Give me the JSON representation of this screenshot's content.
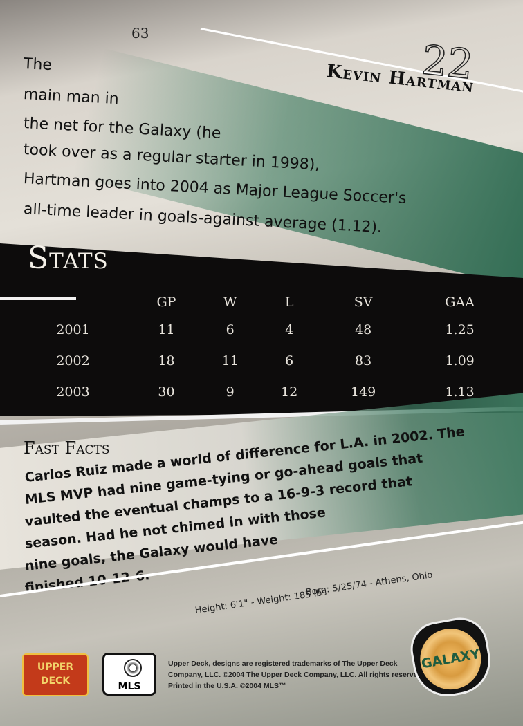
{
  "page_number": "63",
  "player": {
    "number": "22",
    "name": "Kevin Hartman"
  },
  "bio_lines": [
    "The",
    "main man in",
    "the net for the Galaxy (he",
    "took over as a regular starter in 1998),",
    "Hartman goes into 2004 as Major League Soccer's",
    "all-time leader in goals-against average (1.12)."
  ],
  "stats": {
    "title": "Stats",
    "headers": [
      "",
      "GP",
      "W",
      "L",
      "SV",
      "GAA"
    ],
    "rows": [
      [
        "2001",
        "11",
        "6",
        "4",
        "48",
        "1.25"
      ],
      [
        "2002",
        "18",
        "11",
        "6",
        "83",
        "1.09"
      ],
      [
        "2003",
        "30",
        "9",
        "12",
        "149",
        "1.13"
      ]
    ]
  },
  "fast_facts": {
    "title": "Fast Facts",
    "lines": [
      "Carlos Ruiz made a world of difference for L.A. in 2002. The",
      "MLS MVP had nine game-tying or go-ahead goals that",
      "vaulted the eventual champs to a 16-9-3 record that",
      "season. Had he not chimed in with those",
      "nine goals, the Galaxy would have",
      "finished 10-12-6."
    ]
  },
  "info": {
    "height_weight": "Height: 6'1\" - Weight: 185 lbs",
    "born": "Born: 5/25/74 - Athens, Ohio"
  },
  "legal_lines": [
    "Upper Deck, designs are registered trademarks of The Upper Deck",
    "Company, LLC. ©2004 The Upper Deck Company, LLC. All rights reserved.",
    "Printed in the U.S.A. ©2004 MLS™"
  ],
  "logos": {
    "upper_deck": "UPPER DECK",
    "mls": "MLS",
    "galaxy": "GALAXY"
  },
  "colors": {
    "accent_green": "#2f6b52",
    "stats_band": "#0d0c0c"
  }
}
